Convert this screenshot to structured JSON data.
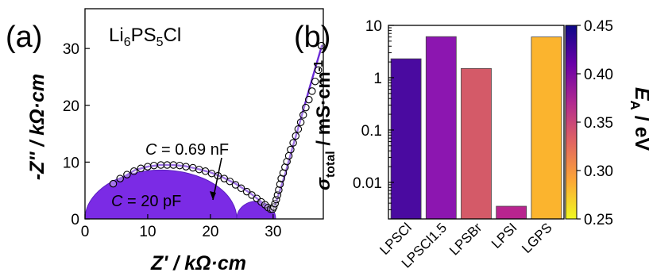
{
  "chart_data": [
    {
      "panel_label": "(a)",
      "type": "scatter",
      "title": "Li6PS5Cl",
      "title_parts": {
        "base": "Li",
        "sub1": "6",
        "mid": "PS",
        "sub2": "5",
        "end": "Cl"
      },
      "xlabel": "Z' / kΩ·cm",
      "ylabel": "-Z'' / kΩ·cm",
      "xlim": [
        0,
        38
      ],
      "ylim": [
        0,
        37
      ],
      "xticks": [
        0,
        10,
        20,
        30
      ],
      "yticks": [
        0,
        10,
        20,
        30
      ],
      "series": [
        {
          "type": "scatter",
          "x": [
            4.5,
            5.6,
            6.7,
            7.8,
            8.9,
            10.0,
            11.0,
            12.1,
            13.1,
            14.1,
            15.1,
            16.1,
            17.2,
            18.2,
            19.2,
            20.2,
            21.2,
            22.2,
            23.1,
            24.0,
            24.9,
            25.8,
            26.6,
            27.4,
            28.1,
            28.7,
            29.2,
            29.6,
            29.9,
            30.1,
            30.3,
            30.5,
            30.7,
            30.9,
            31.1,
            31.3,
            31.6,
            31.9,
            32.2,
            32.5,
            32.8,
            33.2,
            33.6,
            34.0,
            34.4,
            34.8,
            35.2,
            35.7,
            36.2,
            36.7,
            37.2,
            37.7
          ],
          "y": [
            6.2,
            7.1,
            7.8,
            8.4,
            8.9,
            9.2,
            9.4,
            9.5,
            9.5,
            9.5,
            9.4,
            9.2,
            9.0,
            8.7,
            8.4,
            8.0,
            7.6,
            7.1,
            6.6,
            6.0,
            5.4,
            4.8,
            4.2,
            3.6,
            3.0,
            2.5,
            2.0,
            1.7,
            1.7,
            2.1,
            2.7,
            3.4,
            4.2,
            5.1,
            6.1,
            7.1,
            8.1,
            9.1,
            10.1,
            11.1,
            12.2,
            13.4,
            14.6,
            15.8,
            17.0,
            18.3,
            19.6,
            21.0,
            22.5,
            24.2,
            26.2,
            30.5
          ]
        },
        {
          "type": "line",
          "x": [
            4.5,
            6,
            8,
            10,
            12,
            14,
            16,
            18,
            20,
            22,
            24,
            26,
            27,
            28,
            29,
            29.5,
            29.9,
            30.2,
            30.6,
            31.2,
            32,
            33,
            34,
            35,
            36,
            37,
            37.8
          ],
          "y": [
            6.1,
            7.3,
            8.6,
            9.2,
            9.5,
            9.5,
            9.3,
            8.8,
            8.2,
            7.3,
            6.2,
            4.8,
            4.0,
            3.1,
            2.2,
            1.8,
            1.7,
            2.2,
            3.4,
            5.4,
            8.2,
            12.2,
            16.0,
            19.9,
            23.8,
            27.6,
            30.6
          ]
        }
      ],
      "annotations": [
        {
          "text_parts": {
            "var": "C",
            "rest": " = 20 pF"
          },
          "semicircle": {
            "x_from": 0,
            "x_to": 24.2,
            "height": 8.6
          }
        },
        {
          "text_parts": {
            "var": "C",
            "rest": " = 0.69 nF"
          },
          "semicircle": {
            "x_from": 24.2,
            "x_to": 30.4,
            "height": 3.1
          }
        }
      ],
      "colors": {
        "fill": "#7b2be5",
        "line": "#6c2bd6",
        "marker_edge": "#000000"
      }
    },
    {
      "panel_label": "(b)",
      "type": "bar",
      "categories": [
        "LPSCl",
        "LPSCl1.5",
        "LPSBr",
        "LPSI",
        "LGPS"
      ],
      "values": [
        2.3,
        6.1,
        1.5,
        0.0035,
        6.0
      ],
      "color_values_eV": [
        0.431,
        0.408,
        0.336,
        0.383,
        0.293
      ],
      "bar_colors": [
        "#4a0aa0",
        "#8c16b0",
        "#d45a68",
        "#b8248f",
        "#fbb42e"
      ],
      "ylabel": "σtotal / mS·cm-1",
      "ylabel_parts": {
        "sym": "σ",
        "sub": "total",
        "rest": " / mS·cm",
        "sup": "-1"
      },
      "yscale": "log",
      "ylim": [
        0.002,
        10
      ],
      "ytick_labels": [
        "0.01",
        "0.1",
        "1",
        "10"
      ],
      "yticks": [
        0.01,
        0.1,
        1,
        10
      ],
      "colorbar": {
        "label": "EA / eV",
        "label_parts": {
          "base": "E",
          "sub": "A",
          "rest": " / eV"
        },
        "range": [
          0.25,
          0.45
        ],
        "ticks": [
          0.25,
          0.3,
          0.35,
          0.4,
          0.45
        ],
        "tick_labels": [
          "0.25",
          "0.30",
          "0.35",
          "0.40",
          "0.45"
        ],
        "colormap": "plasma",
        "stops": [
          "#f0f921",
          "#fca636",
          "#e16462",
          "#b12a90",
          "#6a00a8",
          "#0d0887"
        ]
      }
    }
  ]
}
